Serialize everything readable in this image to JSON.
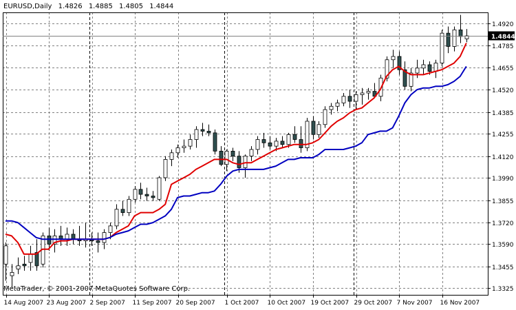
{
  "header": {
    "symbol": "EURUSD,Daily",
    "open": "1.4826",
    "high": "1.4885",
    "low": "1.4805",
    "close": "1.4844"
  },
  "copyright": "MetaTrader, © 2001-2007 MetaQuotes Software Corp.",
  "colors": {
    "background": "#ffffff",
    "grid": "#808080",
    "frame": "#000000",
    "candle_up": "#ffffff",
    "candle_down": "#2f4f4f",
    "indicator_fast": "#e00000",
    "indicator_slow": "#0000c0",
    "price_marker_bg": "#000000",
    "price_marker_text": "#ffffff"
  },
  "chart_data": {
    "type": "candlestick",
    "title": "EURUSD,Daily",
    "ylim": [
      1.3285,
      1.4985
    ],
    "grid": true,
    "y_ticks": [
      "1.4920",
      "1.4785",
      "1.4655",
      "1.4520",
      "1.4385",
      "1.4255",
      "1.4120",
      "1.3990",
      "1.3855",
      "1.3720",
      "1.3590",
      "1.3455",
      "1.3325"
    ],
    "current_price": "1.4844",
    "x_labels": [
      {
        "label": "14 Aug 2007",
        "bar": 0
      },
      {
        "label": "23 Aug 2007",
        "bar": 7
      },
      {
        "label": "2 Sep 2007",
        "bar": 14
      },
      {
        "label": "11 Sep 2007",
        "bar": 21
      },
      {
        "label": "20 Sep 2007",
        "bar": 28
      },
      {
        "label": "1 Oct 2007",
        "bar": 36
      },
      {
        "label": "10 Oct 2007",
        "bar": 43
      },
      {
        "label": "19 Oct 2007",
        "bar": 50
      },
      {
        "label": "29 Oct 2007",
        "bar": 57
      },
      {
        "label": "7 Nov 2007",
        "bar": 64
      },
      {
        "label": "16 Nov 2007",
        "bar": 71
      }
    ],
    "candles": [
      {
        "o": 1.347,
        "h": 1.36,
        "l": 1.337,
        "c": 1.358
      },
      {
        "o": 1.34,
        "h": 1.347,
        "l": 1.333,
        "c": 1.342
      },
      {
        "o": 1.344,
        "h": 1.351,
        "l": 1.341,
        "c": 1.346
      },
      {
        "o": 1.347,
        "h": 1.352,
        "l": 1.343,
        "c": 1.346
      },
      {
        "o": 1.348,
        "h": 1.358,
        "l": 1.343,
        "c": 1.353
      },
      {
        "o": 1.354,
        "h": 1.362,
        "l": 1.343,
        "c": 1.346
      },
      {
        "o": 1.347,
        "h": 1.366,
        "l": 1.345,
        "c": 1.364
      },
      {
        "o": 1.364,
        "h": 1.369,
        "l": 1.355,
        "c": 1.359
      },
      {
        "o": 1.359,
        "h": 1.368,
        "l": 1.354,
        "c": 1.364
      },
      {
        "o": 1.364,
        "h": 1.37,
        "l": 1.358,
        "c": 1.362
      },
      {
        "o": 1.362,
        "h": 1.369,
        "l": 1.358,
        "c": 1.365
      },
      {
        "o": 1.365,
        "h": 1.368,
        "l": 1.359,
        "c": 1.362
      },
      {
        "o": 1.362,
        "h": 1.37,
        "l": 1.358,
        "c": 1.361
      },
      {
        "o": 1.361,
        "h": 1.372,
        "l": 1.357,
        "c": 1.362
      },
      {
        "o": 1.362,
        "h": 1.366,
        "l": 1.358,
        "c": 1.361
      },
      {
        "o": 1.361,
        "h": 1.366,
        "l": 1.354,
        "c": 1.36
      },
      {
        "o": 1.36,
        "h": 1.368,
        "l": 1.356,
        "c": 1.366
      },
      {
        "o": 1.366,
        "h": 1.372,
        "l": 1.362,
        "c": 1.37
      },
      {
        "o": 1.37,
        "h": 1.383,
        "l": 1.368,
        "c": 1.38
      },
      {
        "o": 1.38,
        "h": 1.385,
        "l": 1.376,
        "c": 1.378
      },
      {
        "o": 1.378,
        "h": 1.388,
        "l": 1.376,
        "c": 1.386
      },
      {
        "o": 1.386,
        "h": 1.394,
        "l": 1.384,
        "c": 1.392
      },
      {
        "o": 1.392,
        "h": 1.396,
        "l": 1.386,
        "c": 1.389
      },
      {
        "o": 1.389,
        "h": 1.393,
        "l": 1.385,
        "c": 1.388
      },
      {
        "o": 1.388,
        "h": 1.391,
        "l": 1.385,
        "c": 1.387
      },
      {
        "o": 1.386,
        "h": 1.4,
        "l": 1.385,
        "c": 1.399
      },
      {
        "o": 1.399,
        "h": 1.412,
        "l": 1.397,
        "c": 1.41
      },
      {
        "o": 1.41,
        "h": 1.416,
        "l": 1.406,
        "c": 1.414
      },
      {
        "o": 1.414,
        "h": 1.419,
        "l": 1.411,
        "c": 1.417
      },
      {
        "o": 1.417,
        "h": 1.422,
        "l": 1.414,
        "c": 1.418
      },
      {
        "o": 1.418,
        "h": 1.425,
        "l": 1.416,
        "c": 1.422
      },
      {
        "o": 1.422,
        "h": 1.43,
        "l": 1.417,
        "c": 1.428
      },
      {
        "o": 1.428,
        "h": 1.432,
        "l": 1.424,
        "c": 1.427
      },
      {
        "o": 1.427,
        "h": 1.431,
        "l": 1.424,
        "c": 1.426
      },
      {
        "o": 1.426,
        "h": 1.428,
        "l": 1.413,
        "c": 1.415
      },
      {
        "o": 1.415,
        "h": 1.418,
        "l": 1.406,
        "c": 1.407
      },
      {
        "o": 1.407,
        "h": 1.416,
        "l": 1.403,
        "c": 1.415
      },
      {
        "o": 1.415,
        "h": 1.417,
        "l": 1.409,
        "c": 1.412
      },
      {
        "o": 1.412,
        "h": 1.415,
        "l": 1.402,
        "c": 1.405
      },
      {
        "o": 1.405,
        "h": 1.413,
        "l": 1.399,
        "c": 1.412
      },
      {
        "o": 1.412,
        "h": 1.418,
        "l": 1.409,
        "c": 1.416
      },
      {
        "o": 1.416,
        "h": 1.424,
        "l": 1.413,
        "c": 1.422
      },
      {
        "o": 1.422,
        "h": 1.426,
        "l": 1.417,
        "c": 1.42
      },
      {
        "o": 1.42,
        "h": 1.424,
        "l": 1.416,
        "c": 1.418
      },
      {
        "o": 1.418,
        "h": 1.423,
        "l": 1.415,
        "c": 1.421
      },
      {
        "o": 1.421,
        "h": 1.424,
        "l": 1.417,
        "c": 1.419
      },
      {
        "o": 1.419,
        "h": 1.426,
        "l": 1.417,
        "c": 1.425
      },
      {
        "o": 1.425,
        "h": 1.43,
        "l": 1.42,
        "c": 1.422
      },
      {
        "o": 1.422,
        "h": 1.43,
        "l": 1.414,
        "c": 1.417
      },
      {
        "o": 1.417,
        "h": 1.435,
        "l": 1.415,
        "c": 1.433
      },
      {
        "o": 1.433,
        "h": 1.436,
        "l": 1.422,
        "c": 1.425
      },
      {
        "o": 1.425,
        "h": 1.433,
        "l": 1.423,
        "c": 1.431
      },
      {
        "o": 1.431,
        "h": 1.442,
        "l": 1.429,
        "c": 1.44
      },
      {
        "o": 1.44,
        "h": 1.444,
        "l": 1.437,
        "c": 1.442
      },
      {
        "o": 1.442,
        "h": 1.446,
        "l": 1.439,
        "c": 1.444
      },
      {
        "o": 1.444,
        "h": 1.45,
        "l": 1.442,
        "c": 1.448
      },
      {
        "o": 1.448,
        "h": 1.452,
        "l": 1.441,
        "c": 1.445
      },
      {
        "o": 1.445,
        "h": 1.451,
        "l": 1.44,
        "c": 1.449
      },
      {
        "o": 1.449,
        "h": 1.453,
        "l": 1.443,
        "c": 1.45
      },
      {
        "o": 1.45,
        "h": 1.453,
        "l": 1.446,
        "c": 1.451
      },
      {
        "o": 1.451,
        "h": 1.456,
        "l": 1.447,
        "c": 1.448
      },
      {
        "o": 1.448,
        "h": 1.461,
        "l": 1.445,
        "c": 1.459
      },
      {
        "o": 1.459,
        "h": 1.472,
        "l": 1.457,
        "c": 1.47
      },
      {
        "o": 1.47,
        "h": 1.476,
        "l": 1.465,
        "c": 1.472
      },
      {
        "o": 1.472,
        "h": 1.475,
        "l": 1.461,
        "c": 1.464
      },
      {
        "o": 1.464,
        "h": 1.469,
        "l": 1.452,
        "c": 1.454
      },
      {
        "o": 1.454,
        "h": 1.465,
        "l": 1.451,
        "c": 1.462
      },
      {
        "o": 1.462,
        "h": 1.47,
        "l": 1.459,
        "c": 1.465
      },
      {
        "o": 1.465,
        "h": 1.47,
        "l": 1.461,
        "c": 1.467
      },
      {
        "o": 1.467,
        "h": 1.469,
        "l": 1.461,
        "c": 1.463
      },
      {
        "o": 1.463,
        "h": 1.47,
        "l": 1.459,
        "c": 1.468
      },
      {
        "o": 1.468,
        "h": 1.488,
        "l": 1.466,
        "c": 1.486
      },
      {
        "o": 1.486,
        "h": 1.49,
        "l": 1.474,
        "c": 1.478
      },
      {
        "o": 1.478,
        "h": 1.49,
        "l": 1.475,
        "c": 1.488
      },
      {
        "o": 1.488,
        "h": 1.497,
        "l": 1.48,
        "c": 1.484
      },
      {
        "o": 1.4826,
        "h": 1.4885,
        "l": 1.4805,
        "c": 1.4844
      }
    ],
    "series": [
      {
        "values": [
          1.365,
          1.364,
          1.36,
          1.353,
          1.353,
          1.353,
          1.356,
          1.356,
          1.36,
          1.361,
          1.361,
          1.362,
          1.362,
          1.362,
          1.362,
          1.362,
          1.362,
          1.363,
          1.366,
          1.368,
          1.37,
          1.376,
          1.378,
          1.378,
          1.378,
          1.38,
          1.383,
          1.395,
          1.397,
          1.399,
          1.401,
          1.404,
          1.406,
          1.408,
          1.41,
          1.41,
          1.41,
          1.408,
          1.407,
          1.408,
          1.408,
          1.41,
          1.412,
          1.414,
          1.416,
          1.417,
          1.418,
          1.419,
          1.419,
          1.419,
          1.42,
          1.422,
          1.426,
          1.43,
          1.433,
          1.435,
          1.438,
          1.44,
          1.441,
          1.444,
          1.447,
          1.452,
          1.46,
          1.464,
          1.466,
          1.463,
          1.461,
          1.461,
          1.461,
          1.462,
          1.463,
          1.464,
          1.466,
          1.468,
          1.472,
          1.48
        ]
      },
      {
        "values": [
          1.373,
          1.373,
          1.372,
          1.369,
          1.366,
          1.363,
          1.362,
          1.362,
          1.362,
          1.362,
          1.362,
          1.362,
          1.362,
          1.362,
          1.362,
          1.362,
          1.362,
          1.363,
          1.365,
          1.366,
          1.367,
          1.369,
          1.371,
          1.371,
          1.372,
          1.374,
          1.376,
          1.38,
          1.387,
          1.388,
          1.388,
          1.389,
          1.39,
          1.39,
          1.391,
          1.395,
          1.4,
          1.403,
          1.404,
          1.404,
          1.404,
          1.404,
          1.404,
          1.405,
          1.406,
          1.408,
          1.41,
          1.41,
          1.411,
          1.411,
          1.411,
          1.413,
          1.416,
          1.416,
          1.416,
          1.416,
          1.417,
          1.418,
          1.42,
          1.425,
          1.426,
          1.427,
          1.427,
          1.429,
          1.436,
          1.444,
          1.449,
          1.452,
          1.453,
          1.453,
          1.454,
          1.454,
          1.455,
          1.457,
          1.46,
          1.466
        ]
      }
    ]
  }
}
